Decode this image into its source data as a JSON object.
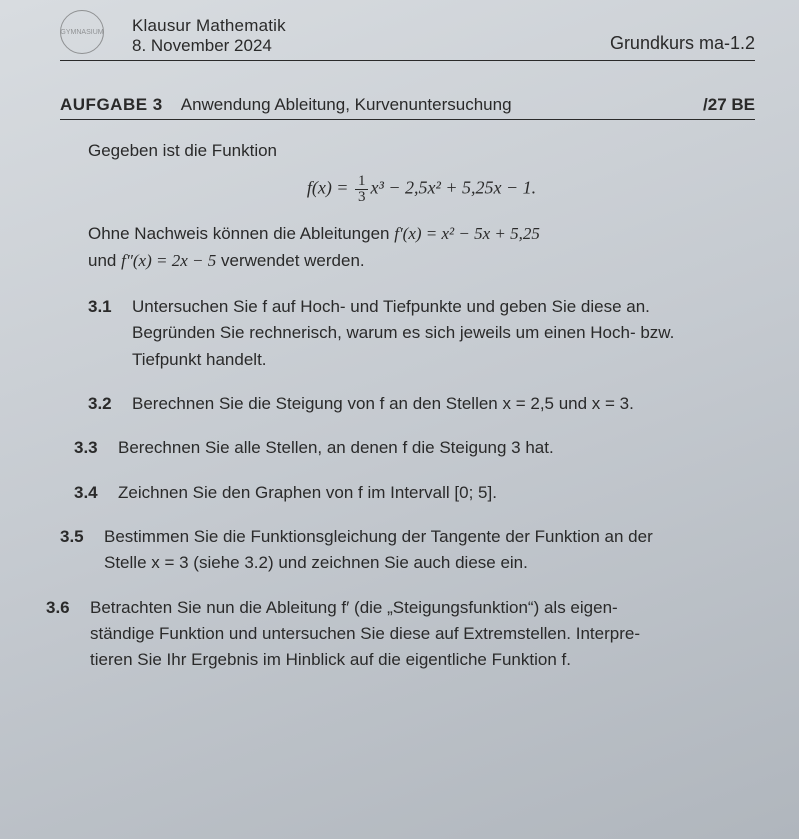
{
  "header": {
    "seal_text": "GYMNASIUM",
    "exam_title": "Klausur Mathematik",
    "exam_date": "8. November 2024",
    "course_code": "Grundkurs ma-1.2"
  },
  "task": {
    "number": "AUFGABE 3",
    "title": "Anwendung Ableitung, Kurvenuntersuchung",
    "points": "/27 BE"
  },
  "intro": "Gegeben ist die Funktion",
  "formula": {
    "lhs": "f(x) = ",
    "frac_num": "1",
    "frac_den": "3",
    "tail": "x³ − 2,5x² + 5,25x − 1."
  },
  "given_line1_a": "Ohne Nachweis können die Ableitungen ",
  "given_line1_b": "f′(x) = x² − 5x + 5,25",
  "given_line2_a": "und ",
  "given_line2_b": "f″(x) = 2x − 5",
  "given_line2_c": " verwendet werden.",
  "subs": {
    "s31": {
      "num": "3.1",
      "l1": "Untersuchen Sie f auf Hoch- und Tiefpunkte und geben Sie diese an.",
      "l2": "Begründen Sie rechnerisch, warum es sich jeweils um einen Hoch- bzw.",
      "l3": "Tiefpunkt handelt."
    },
    "s32": {
      "num": "3.2",
      "text": "Berechnen Sie die Steigung von f an den Stellen x = 2,5 und x = 3."
    },
    "s33": {
      "num": "3.3",
      "text": "Berechnen Sie alle Stellen, an denen f die Steigung 3 hat."
    },
    "s34": {
      "num": "3.4",
      "text": "Zeichnen Sie den Graphen von f im Intervall [0; 5]."
    },
    "s35": {
      "num": "3.5",
      "l1": "Bestimmen Sie die Funktionsgleichung der Tangente der Funktion an der",
      "l2": "Stelle x = 3 (siehe 3.2) und zeichnen Sie auch diese ein."
    },
    "s36": {
      "num": "3.6",
      "l1": "Betrachten Sie nun die Ableitung f′ (die „Steigungsfunktion“) als eigen-",
      "l2": "ständige Funktion und untersuchen Sie diese auf Extremstellen. Interpre-",
      "l3": "tieren Sie Ihr Ergebnis im Hinblick auf die eigentliche Funktion f."
    }
  }
}
